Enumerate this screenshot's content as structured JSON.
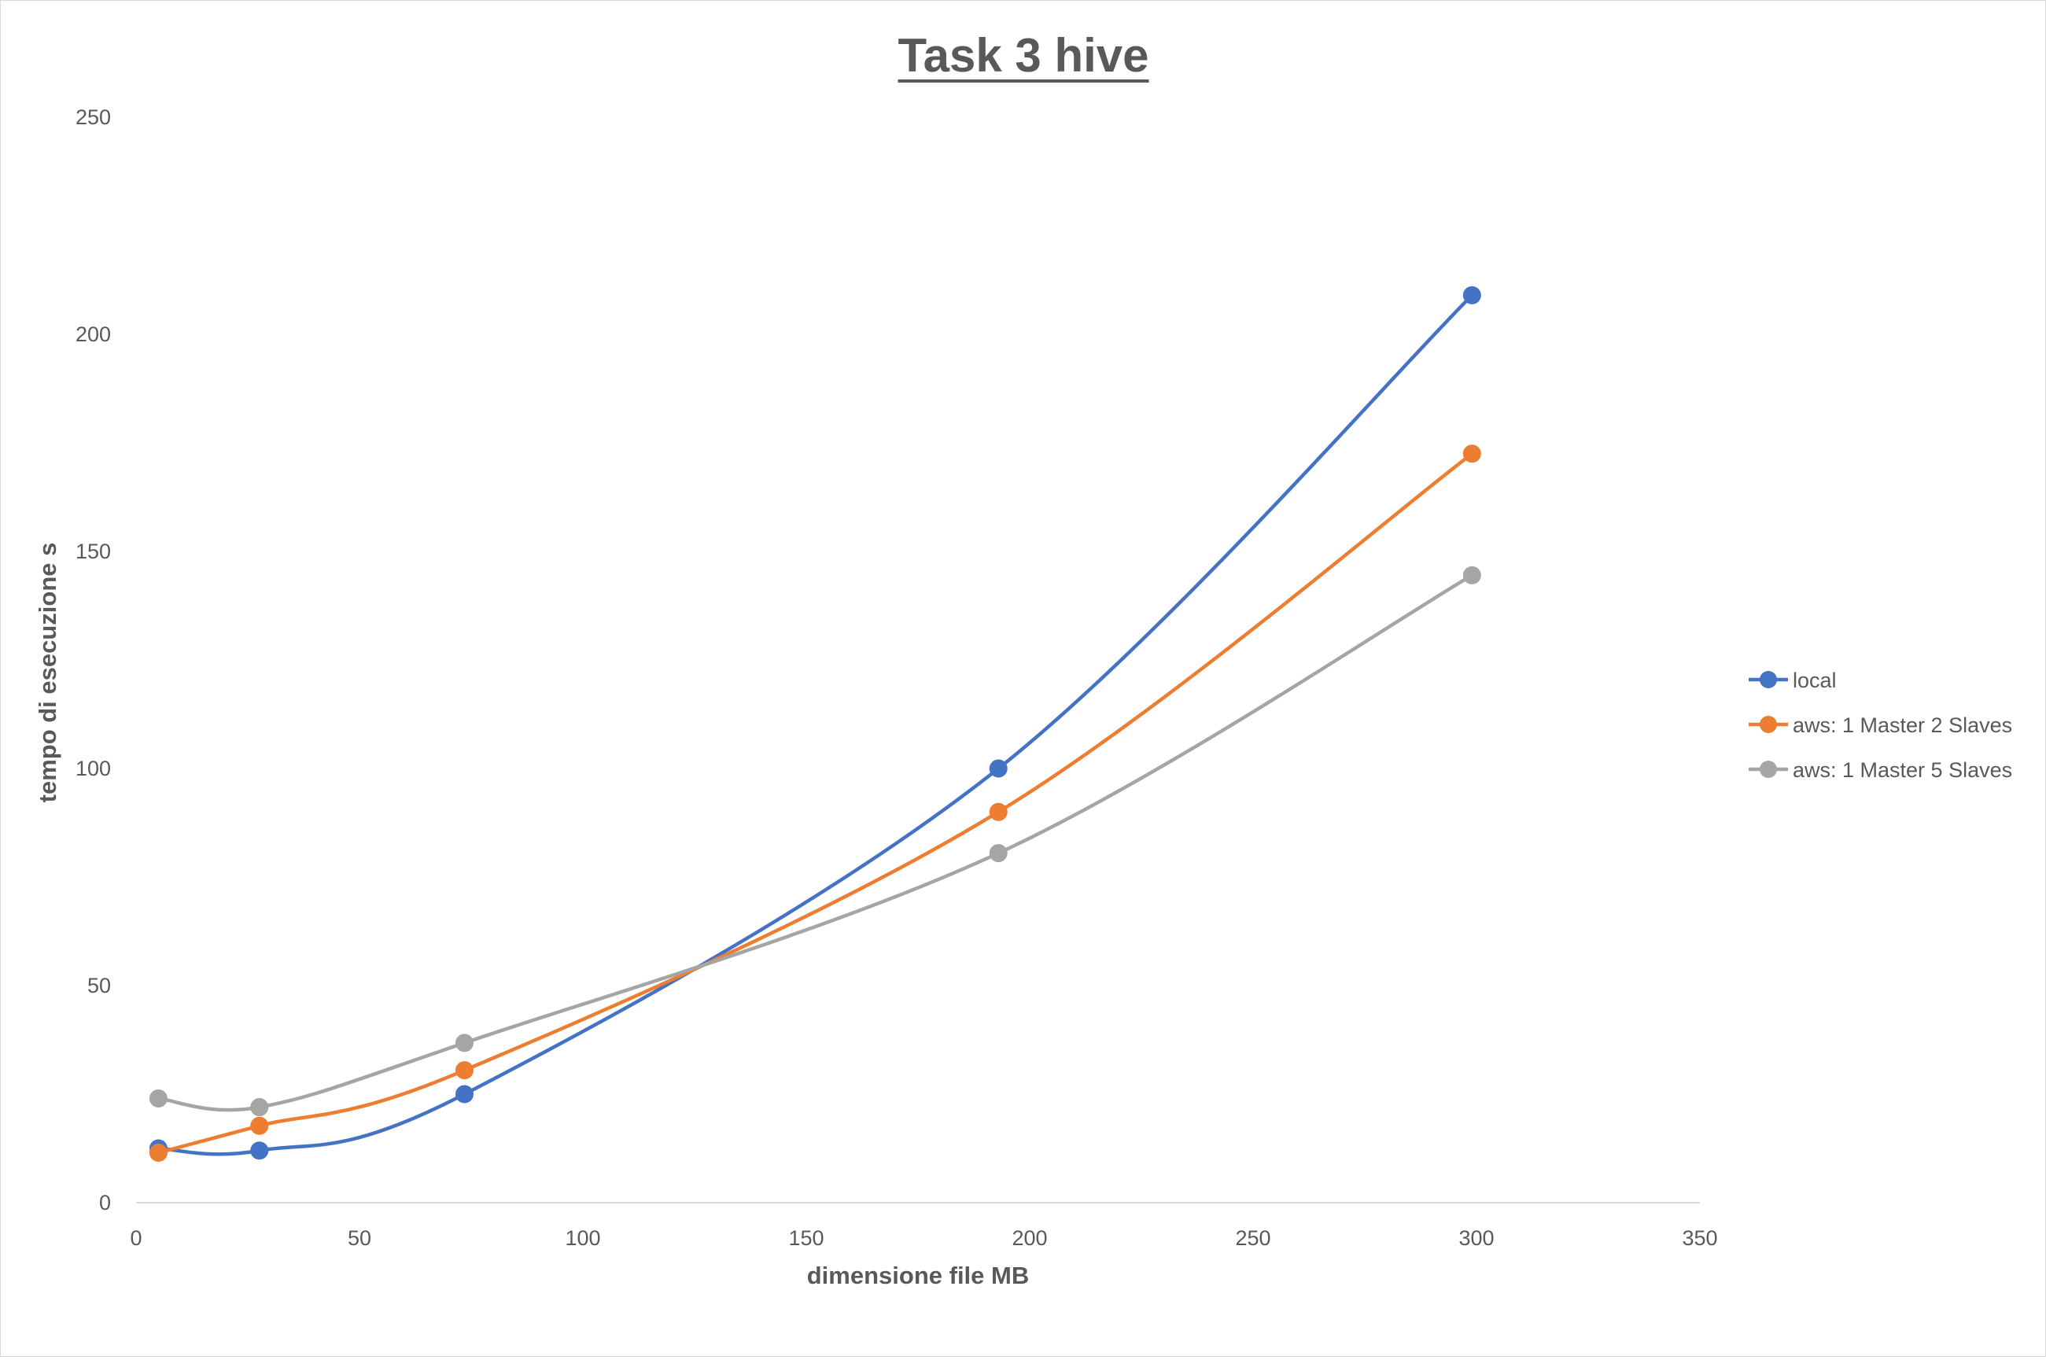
{
  "chart_data": {
    "type": "scatter",
    "title": "Task 3 hive",
    "xlabel": "dimensione file MB",
    "ylabel": "tempo di esecuzione s",
    "xlim": [
      0,
      350
    ],
    "ylim": [
      0,
      250
    ],
    "xticks": [
      0,
      50,
      100,
      150,
      200,
      250,
      300,
      350
    ],
    "yticks": [
      0,
      50,
      100,
      150,
      200,
      250
    ],
    "grid": false,
    "legend_position": "right",
    "smooth_lines": true,
    "series": [
      {
        "name": "local",
        "color": "#4472C4",
        "points": [
          [
            5,
            12.5
          ],
          [
            27.6,
            12
          ],
          [
            73.5,
            25
          ],
          [
            193,
            100
          ],
          [
            299,
            209
          ]
        ]
      },
      {
        "name": "aws: 1 Master 2 Slaves",
        "color": "#ED7D31",
        "points": [
          [
            5,
            11.5
          ],
          [
            27.6,
            17.7
          ],
          [
            73.5,
            30.5
          ],
          [
            193,
            90
          ],
          [
            299,
            172.5
          ]
        ]
      },
      {
        "name": "aws: 1 Master 5 Slaves",
        "color": "#A5A5A5",
        "points": [
          [
            5,
            24
          ],
          [
            27.6,
            22
          ],
          [
            73.5,
            36.8
          ],
          [
            193,
            80.5
          ],
          [
            299,
            144.5
          ]
        ]
      }
    ]
  }
}
